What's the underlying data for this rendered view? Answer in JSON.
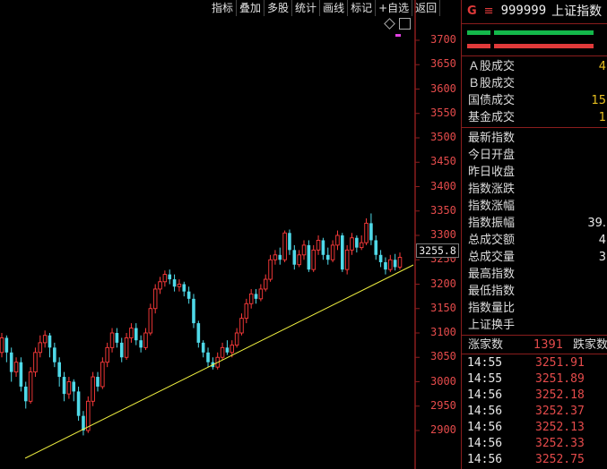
{
  "toolbar": {
    "items": [
      "指标",
      "叠加",
      "多股",
      "统计",
      "画线",
      "标记",
      "+自选",
      "返回"
    ]
  },
  "chart": {
    "y_ticks": [
      "3700",
      "3650",
      "3600",
      "3550",
      "3500",
      "3450",
      "3400",
      "3350",
      "3300",
      "3250",
      "3200",
      "3150",
      "3100",
      "3050",
      "3000",
      "2950",
      "2900"
    ],
    "current_price": "3255.8",
    "colors": {
      "up": "#ff3b3b",
      "down": "#4fd9e8",
      "trend": "#f0f040",
      "axis": "#8a1d1d"
    }
  },
  "chart_data": {
    "type": "candlestick",
    "ylim": [
      2860,
      3725
    ],
    "y_ticks": [
      3700,
      3650,
      3600,
      3550,
      3500,
      3450,
      3400,
      3350,
      3300,
      3250,
      3200,
      3150,
      3100,
      3050,
      3000,
      2950,
      2900
    ],
    "last_price": 3255.8,
    "candles": [
      [
        3060,
        3090,
        3050,
        3100
      ],
      [
        3090,
        3060,
        3040,
        3095
      ],
      [
        3060,
        3020,
        3000,
        3070
      ],
      [
        3020,
        3040,
        3010,
        3050
      ],
      [
        3040,
        2990,
        2980,
        3050
      ],
      [
        2990,
        2960,
        2945,
        3000
      ],
      [
        2960,
        3020,
        2955,
        3030
      ],
      [
        3020,
        3060,
        3010,
        3070
      ],
      [
        3060,
        3080,
        3050,
        3095
      ],
      [
        3080,
        3095,
        3070,
        3105
      ],
      [
        3095,
        3070,
        3050,
        3100
      ],
      [
        3070,
        3040,
        3030,
        3080
      ],
      [
        3040,
        3010,
        2990,
        3050
      ],
      [
        3010,
        2975,
        2960,
        3020
      ],
      [
        2975,
        3000,
        2965,
        3010
      ],
      [
        3000,
        2980,
        2960,
        3005
      ],
      [
        2980,
        2930,
        2920,
        2990
      ],
      [
        2930,
        2900,
        2890,
        2940
      ],
      [
        2900,
        2960,
        2895,
        2970
      ],
      [
        2960,
        3010,
        2950,
        3020
      ],
      [
        3010,
        2990,
        2980,
        3020
      ],
      [
        2990,
        3040,
        2985,
        3050
      ],
      [
        3040,
        3070,
        3030,
        3080
      ],
      [
        3070,
        3100,
        3060,
        3110
      ],
      [
        3100,
        3080,
        3070,
        3110
      ],
      [
        3080,
        3050,
        3040,
        3090
      ],
      [
        3050,
        3090,
        3045,
        3100
      ],
      [
        3090,
        3110,
        3080,
        3120
      ],
      [
        3110,
        3085,
        3075,
        3120
      ],
      [
        3085,
        3070,
        3060,
        3095
      ],
      [
        3070,
        3100,
        3065,
        3110
      ],
      [
        3100,
        3150,
        3095,
        3160
      ],
      [
        3150,
        3190,
        3140,
        3200
      ],
      [
        3190,
        3205,
        3180,
        3215
      ],
      [
        3205,
        3220,
        3195,
        3228
      ],
      [
        3220,
        3210,
        3200,
        3230
      ],
      [
        3210,
        3195,
        3185,
        3220
      ],
      [
        3195,
        3200,
        3185,
        3210
      ],
      [
        3200,
        3185,
        3175,
        3205
      ],
      [
        3185,
        3170,
        3160,
        3195
      ],
      [
        3170,
        3120,
        3110,
        3180
      ],
      [
        3120,
        3080,
        3070,
        3125
      ],
      [
        3080,
        3060,
        3050,
        3085
      ],
      [
        3060,
        3040,
        3030,
        3070
      ],
      [
        3040,
        3030,
        3025,
        3050
      ],
      [
        3030,
        3050,
        3025,
        3060
      ],
      [
        3050,
        3070,
        3045,
        3080
      ],
      [
        3070,
        3060,
        3055,
        3085
      ],
      [
        3060,
        3075,
        3050,
        3085
      ],
      [
        3075,
        3100,
        3070,
        3110
      ],
      [
        3100,
        3130,
        3095,
        3140
      ],
      [
        3130,
        3160,
        3120,
        3170
      ],
      [
        3160,
        3180,
        3150,
        3190
      ],
      [
        3180,
        3170,
        3160,
        3190
      ],
      [
        3170,
        3190,
        3165,
        3200
      ],
      [
        3190,
        3210,
        3185,
        3220
      ],
      [
        3210,
        3250,
        3205,
        3260
      ],
      [
        3250,
        3260,
        3240,
        3270
      ],
      [
        3260,
        3250,
        3240,
        3275
      ],
      [
        3250,
        3305,
        3245,
        3310
      ],
      [
        3305,
        3270,
        3260,
        3312
      ],
      [
        3270,
        3240,
        3230,
        3280
      ],
      [
        3240,
        3260,
        3235,
        3270
      ],
      [
        3260,
        3280,
        3250,
        3290
      ],
      [
        3280,
        3230,
        3225,
        3290
      ],
      [
        3230,
        3270,
        3225,
        3280
      ],
      [
        3270,
        3290,
        3260,
        3300
      ],
      [
        3290,
        3260,
        3250,
        3295
      ],
      [
        3260,
        3250,
        3240,
        3275
      ],
      [
        3250,
        3280,
        3245,
        3290
      ],
      [
        3280,
        3300,
        3270,
        3310
      ],
      [
        3300,
        3230,
        3225,
        3305
      ],
      [
        3230,
        3270,
        3220,
        3280
      ],
      [
        3270,
        3295,
        3260,
        3305
      ],
      [
        3295,
        3275,
        3265,
        3300
      ],
      [
        3275,
        3285,
        3270,
        3300
      ],
      [
        3285,
        3325,
        3280,
        3335
      ],
      [
        3325,
        3290,
        3280,
        3345
      ],
      [
        3290,
        3260,
        3250,
        3300
      ],
      [
        3260,
        3245,
        3235,
        3270
      ],
      [
        3245,
        3230,
        3220,
        3255
      ],
      [
        3230,
        3250,
        3225,
        3260
      ],
      [
        3250,
        3235,
        3228,
        3262
      ],
      [
        3235,
        3255,
        3230,
        3265
      ]
    ],
    "trendline": [
      [
        0,
        2840
      ],
      [
        1,
        3260
      ]
    ]
  },
  "panel": {
    "g_icon": "G",
    "menu_icon": "≡",
    "code": "999999",
    "name": "上证指数",
    "stats_a": [
      {
        "label": "Ａ股成交",
        "value": "4"
      },
      {
        "label": "Ｂ股成交",
        "value": ""
      },
      {
        "label": "国债成交",
        "value": "15"
      },
      {
        "label": "基金成交",
        "value": "1"
      }
    ],
    "stats_b": [
      {
        "label": "最新指数",
        "value": ""
      },
      {
        "label": "今日开盘",
        "value": ""
      },
      {
        "label": "昨日收盘",
        "value": ""
      },
      {
        "label": "指数涨跌",
        "value": ""
      },
      {
        "label": "指数涨幅",
        "value": ""
      },
      {
        "label": "指数振幅",
        "value": "39."
      },
      {
        "label": "总成交额",
        "value": "4"
      },
      {
        "label": "总成交量",
        "value": "3"
      },
      {
        "label": "最高指数",
        "value": ""
      },
      {
        "label": "最低指数",
        "value": ""
      },
      {
        "label": "指数量比",
        "value": ""
      },
      {
        "label": "上证换手",
        "value": ""
      }
    ],
    "rise_label": "涨家数",
    "rise_count": "1391",
    "fall_label": "跌家数",
    "ticks": [
      {
        "time": "14:55",
        "price": "3251.91"
      },
      {
        "time": "14:55",
        "price": "3251.89"
      },
      {
        "time": "14:56",
        "price": "3252.18"
      },
      {
        "time": "14:56",
        "price": "3252.37"
      },
      {
        "time": "14:56",
        "price": "3252.13"
      },
      {
        "time": "14:56",
        "price": "3252.33"
      },
      {
        "time": "14:56",
        "price": "3252.75"
      }
    ]
  }
}
